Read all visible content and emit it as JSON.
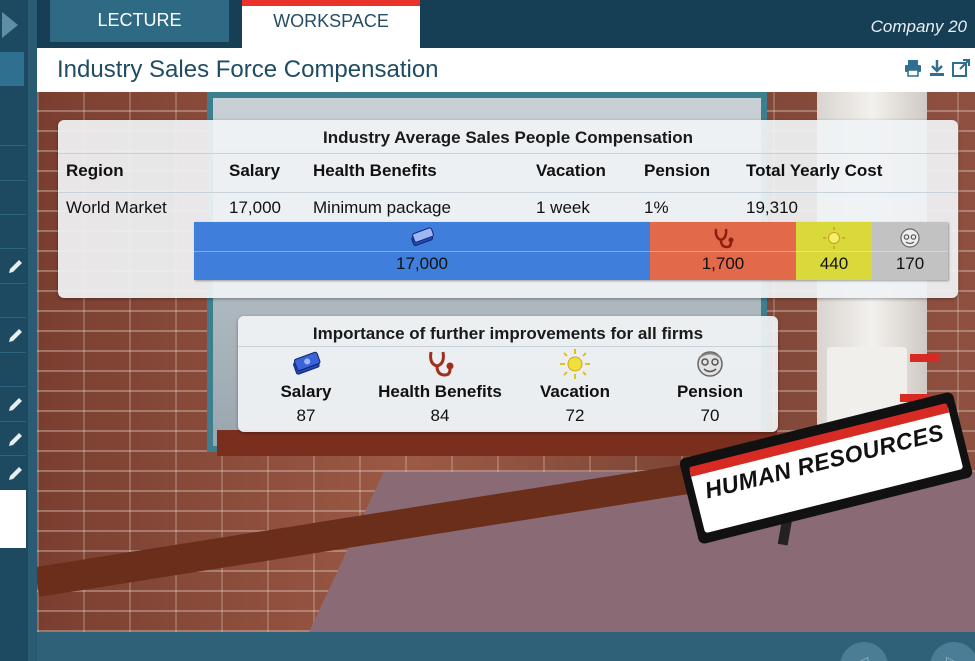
{
  "header": {
    "tabs": [
      {
        "label": "LECTURE",
        "active": false
      },
      {
        "label": "WORKSPACE",
        "active": true
      }
    ],
    "company": "Company 20"
  },
  "page": {
    "title": "Industry Sales Force Compensation",
    "icons": [
      "print-icon",
      "download-icon",
      "external-link-icon"
    ]
  },
  "compensation": {
    "title": "Industry Average Sales People Compensation",
    "headers": {
      "region": "Region",
      "salary": "Salary",
      "health": "Health Benefits",
      "vacation": "Vacation",
      "pension": "Pension",
      "total": "Total Yearly Cost"
    },
    "row": {
      "region": "World Market",
      "salary": "17,000",
      "health": "Minimum package",
      "vacation": "1 week",
      "pension": "1%",
      "total": "19,310"
    },
    "bar": [
      {
        "name": "salary",
        "label": "17,000",
        "value": 17000,
        "color": "#3f7fdb",
        "icon": "money-icon"
      },
      {
        "name": "health",
        "label": "1,700",
        "value": 1700,
        "color": "#e2694a",
        "icon": "stethoscope-icon"
      },
      {
        "name": "vacation",
        "label": "440",
        "value": 440,
        "color": "#d9d93c",
        "icon": "sun-icon"
      },
      {
        "name": "pension",
        "label": "170",
        "value": 170,
        "color": "#c2c2c2",
        "icon": "elderly-face-icon"
      }
    ]
  },
  "importance": {
    "title": "Importance of further improvements for all firms",
    "items": [
      {
        "label": "Salary",
        "value": "87",
        "icon": "money-icon"
      },
      {
        "label": "Health Benefits",
        "value": "84",
        "icon": "stethoscope-icon"
      },
      {
        "label": "Vacation",
        "value": "72",
        "icon": "sun-icon"
      },
      {
        "label": "Pension",
        "value": "70",
        "icon": "elderly-face-icon"
      }
    ]
  },
  "scene": {
    "sign_text": "HUMAN RESOURCES"
  },
  "colors": {
    "accent": "#e8322a",
    "header_bg": "#163f55",
    "title_text": "#1f4c63"
  }
}
